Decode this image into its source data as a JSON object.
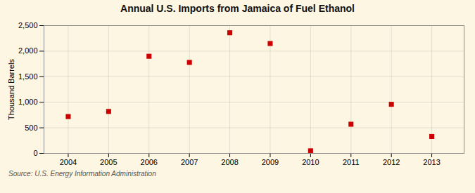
{
  "chart_data": {
    "type": "scatter",
    "title": "Annual U.S. Imports from Jamaica of Fuel Ethanol",
    "ylabel": "Thousand Barrels",
    "source": "Source: U.S. Energy Information Administration",
    "x": [
      2004,
      2005,
      2006,
      2007,
      2008,
      2009,
      2010,
      2011,
      2012,
      2013
    ],
    "values": [
      720,
      820,
      1900,
      1780,
      2360,
      2150,
      50,
      570,
      960,
      330
    ],
    "color": "#cc0000",
    "marker": "square",
    "xlim": [
      2003.4,
      2013.8
    ],
    "xticks": [
      2004,
      2005,
      2006,
      2007,
      2008,
      2009,
      2010,
      2011,
      2012,
      2013
    ],
    "ylim": [
      0,
      2500
    ],
    "yticks": [
      0,
      500,
      {
        "value": 1000,
        "label": "1,000"
      },
      {
        "value": 1500,
        "label": "1,500"
      },
      {
        "value": 2000,
        "label": "2,000"
      },
      {
        "value": 2500,
        "label": "2,500"
      }
    ],
    "grid": true
  }
}
